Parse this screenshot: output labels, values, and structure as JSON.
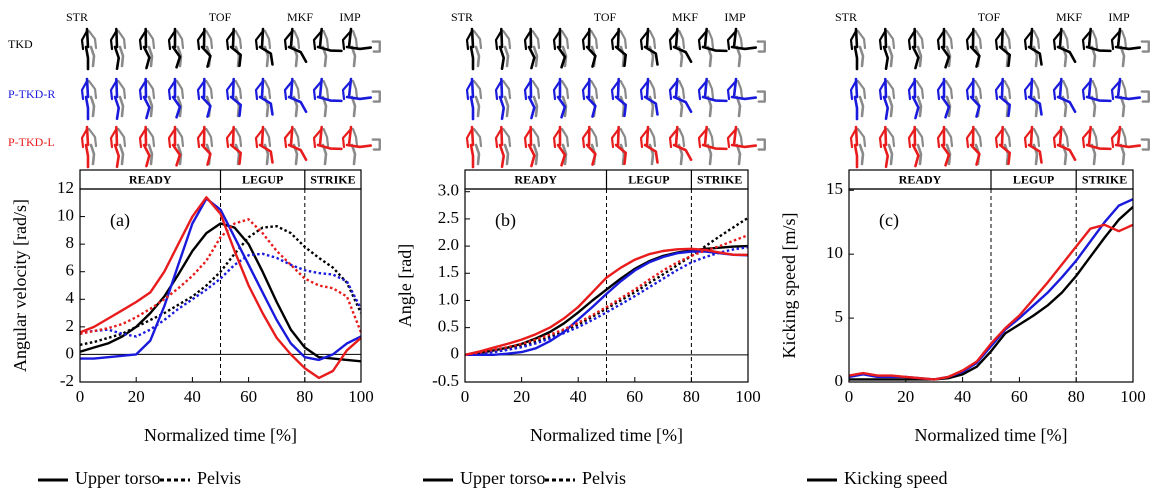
{
  "row_labels": [
    {
      "label": "TKD",
      "color": "#000000"
    },
    {
      "label": "P-TKD-R",
      "color": "#1a1adc"
    },
    {
      "label": "P-TKD-L",
      "color": "#e81c1c"
    }
  ],
  "chart_data": [
    {
      "type": "line",
      "tag": "(a)",
      "ylabel": "Angular velocity [rad/s]",
      "xlabel": "Normalized time [%]",
      "events": [
        "STR",
        "TOF",
        "MKF",
        "IMP"
      ],
      "phases": [
        "READY",
        "LEGUP",
        "STRIKE"
      ],
      "phase_bounds": [
        50,
        80
      ],
      "xlim": [
        0,
        100
      ],
      "xticks": [
        0,
        20,
        40,
        60,
        80,
        100
      ],
      "ylim": [
        -2,
        12
      ],
      "yticks": [
        -2,
        0,
        2,
        4,
        6,
        8,
        10,
        12
      ],
      "legend": [
        {
          "label": "Upper torso",
          "dash": "solid"
        },
        {
          "label": "Pelvis",
          "dash": "dotted"
        }
      ],
      "x": [
        0,
        5,
        10,
        15,
        20,
        25,
        30,
        35,
        40,
        45,
        50,
        55,
        60,
        65,
        70,
        75,
        80,
        85,
        90,
        95,
        100
      ],
      "series": [
        {
          "color": "#000000",
          "dash": "solid",
          "values": [
            0.2,
            0.5,
            0.8,
            1.3,
            2,
            3,
            4.2,
            5.8,
            7.5,
            8.8,
            9.5,
            9.2,
            8,
            6,
            3.8,
            1.8,
            0.5,
            -0.2,
            -0.3,
            -0.4,
            -0.5
          ]
        },
        {
          "color": "#000000",
          "dash": "dotted",
          "values": [
            0.7,
            0.9,
            1.2,
            1.5,
            2,
            2.5,
            3,
            3.6,
            4.2,
            5,
            6,
            7.3,
            8.5,
            9.2,
            9.3,
            8.8,
            7.8,
            7,
            6.3,
            5.2,
            3
          ]
        },
        {
          "color": "#1a1adc",
          "dash": "solid",
          "values": [
            -0.3,
            -0.3,
            -0.2,
            -0.1,
            0,
            1,
            3.5,
            6.5,
            9.5,
            11.3,
            10.5,
            8.5,
            6.5,
            4.5,
            2.5,
            0.8,
            -0.2,
            -0.4,
            0,
            0.8,
            1.3
          ]
        },
        {
          "color": "#1a1adc",
          "dash": "dotted",
          "values": [
            1.6,
            1.7,
            1.8,
            1.5,
            1.3,
            1.8,
            2.5,
            3.3,
            4,
            4.7,
            5.5,
            6.5,
            7.2,
            7.3,
            7,
            6.5,
            6.1,
            5.9,
            5.8,
            5.3,
            3.3
          ]
        },
        {
          "color": "#e81c1c",
          "dash": "solid",
          "values": [
            1.6,
            2,
            2.6,
            3.2,
            3.8,
            4.5,
            6,
            8,
            10,
            11.4,
            10.2,
            7.5,
            5,
            3,
            1.2,
            0,
            -1,
            -1.7,
            -1.2,
            0.3,
            1.2
          ]
        },
        {
          "color": "#e81c1c",
          "dash": "dotted",
          "values": [
            1.5,
            1.7,
            1.9,
            2.2,
            2.7,
            3.3,
            4,
            4.8,
            5.7,
            6.8,
            8.5,
            9.5,
            9.8,
            8.8,
            7.5,
            6.5,
            5.5,
            5,
            4.8,
            4.2,
            1.6
          ]
        }
      ]
    },
    {
      "type": "line",
      "tag": "(b)",
      "ylabel": "Angle [rad]",
      "xlabel": "Normalized time [%]",
      "events": [
        "STR",
        "TOF",
        "MKF",
        "IMP"
      ],
      "phases": [
        "READY",
        "LEGUP",
        "STRIKE"
      ],
      "phase_bounds": [
        50,
        80
      ],
      "xlim": [
        0,
        100
      ],
      "xticks": [
        0,
        20,
        40,
        60,
        80,
        100
      ],
      "ylim": [
        -0.5,
        3.05
      ],
      "yticks": [
        -0.5,
        0,
        0.5,
        {
          "value": 1,
          "label": "1.0"
        },
        1.5,
        {
          "value": 2,
          "label": "2.0"
        },
        2.5,
        {
          "value": 3,
          "label": "3.0"
        }
      ],
      "legend": [
        {
          "label": "Upper torso",
          "dash": "solid"
        },
        {
          "label": "Pelvis",
          "dash": "dotted"
        }
      ],
      "x": [
        0,
        5,
        10,
        15,
        20,
        25,
        30,
        35,
        40,
        45,
        50,
        55,
        60,
        65,
        70,
        75,
        80,
        85,
        90,
        95,
        100
      ],
      "series": [
        {
          "color": "#000000",
          "dash": "solid",
          "values": [
            0,
            0.03,
            0.08,
            0.13,
            0.2,
            0.3,
            0.42,
            0.58,
            0.78,
            1,
            1.2,
            1.4,
            1.58,
            1.72,
            1.82,
            1.88,
            1.92,
            1.95,
            1.97,
            1.99,
            2
          ]
        },
        {
          "color": "#000000",
          "dash": "dotted",
          "values": [
            0,
            0.02,
            0.05,
            0.1,
            0.16,
            0.24,
            0.33,
            0.44,
            0.56,
            0.7,
            0.85,
            1,
            1.15,
            1.32,
            1.48,
            1.65,
            1.82,
            2,
            2.18,
            2.35,
            2.52
          ]
        },
        {
          "color": "#1a1adc",
          "dash": "solid",
          "values": [
            0,
            0,
            0,
            0.02,
            0.05,
            0.12,
            0.25,
            0.42,
            0.65,
            0.88,
            1.12,
            1.35,
            1.55,
            1.7,
            1.8,
            1.87,
            1.9,
            1.9,
            1.87,
            1.84,
            1.83
          ]
        },
        {
          "color": "#1a1adc",
          "dash": "dotted",
          "values": [
            0,
            0.02,
            0.05,
            0.09,
            0.14,
            0.21,
            0.3,
            0.4,
            0.51,
            0.64,
            0.78,
            0.93,
            1.08,
            1.24,
            1.4,
            1.56,
            1.7,
            1.8,
            1.88,
            1.94,
            1.98
          ]
        },
        {
          "color": "#e81c1c",
          "dash": "solid",
          "values": [
            0,
            0.06,
            0.13,
            0.2,
            0.28,
            0.38,
            0.5,
            0.67,
            0.88,
            1.15,
            1.42,
            1.6,
            1.75,
            1.85,
            1.91,
            1.94,
            1.95,
            1.93,
            1.88,
            1.84,
            1.84
          ]
        },
        {
          "color": "#e81c1c",
          "dash": "dotted",
          "values": [
            0,
            0.04,
            0.09,
            0.14,
            0.2,
            0.28,
            0.37,
            0.47,
            0.59,
            0.73,
            0.88,
            1.04,
            1.2,
            1.38,
            1.55,
            1.7,
            1.82,
            1.92,
            2,
            2.1,
            2.2
          ]
        }
      ]
    },
    {
      "type": "line",
      "tag": "(c)",
      "ylabel": "Kicking speed [m/s]",
      "xlabel": "Normalized time [%]",
      "events": [
        "STR",
        "TOF",
        "MKF",
        "IMP"
      ],
      "phases": [
        "READY",
        "LEGUP",
        "STRIKE"
      ],
      "phase_bounds": [
        50,
        80
      ],
      "xlim": [
        0,
        100
      ],
      "xticks": [
        0,
        20,
        40,
        60,
        80,
        100
      ],
      "ylim": [
        0,
        15.1
      ],
      "yticks": [
        0,
        5,
        10,
        15
      ],
      "legend": [
        {
          "label": "Kicking speed",
          "dash": "solid"
        }
      ],
      "x": [
        0,
        5,
        10,
        15,
        20,
        25,
        30,
        35,
        40,
        45,
        50,
        55,
        60,
        65,
        70,
        75,
        80,
        85,
        90,
        95,
        100
      ],
      "series": [
        {
          "color": "#000000",
          "dash": "solid",
          "values": [
            0.2,
            0.2,
            0.2,
            0.2,
            0.2,
            0.2,
            0.2,
            0.3,
            0.6,
            1.2,
            2.4,
            3.8,
            4.5,
            5.2,
            6,
            7,
            8.3,
            9.8,
            11.3,
            12.7,
            13.7
          ]
        },
        {
          "color": "#1a1adc",
          "dash": "solid",
          "values": [
            0.4,
            0.6,
            0.4,
            0.4,
            0.4,
            0.3,
            0.2,
            0.4,
            0.8,
            1.5,
            2.8,
            4.1,
            5,
            6,
            7,
            8.2,
            9.5,
            11,
            12.5,
            13.8,
            14.3
          ]
        },
        {
          "color": "#e81c1c",
          "dash": "solid",
          "values": [
            0.5,
            0.7,
            0.5,
            0.5,
            0.4,
            0.3,
            0.2,
            0.4,
            0.9,
            1.6,
            3,
            4.2,
            5.2,
            6.5,
            7.8,
            9.2,
            10.6,
            12,
            12.3,
            11.8,
            12.3
          ]
        }
      ]
    }
  ]
}
